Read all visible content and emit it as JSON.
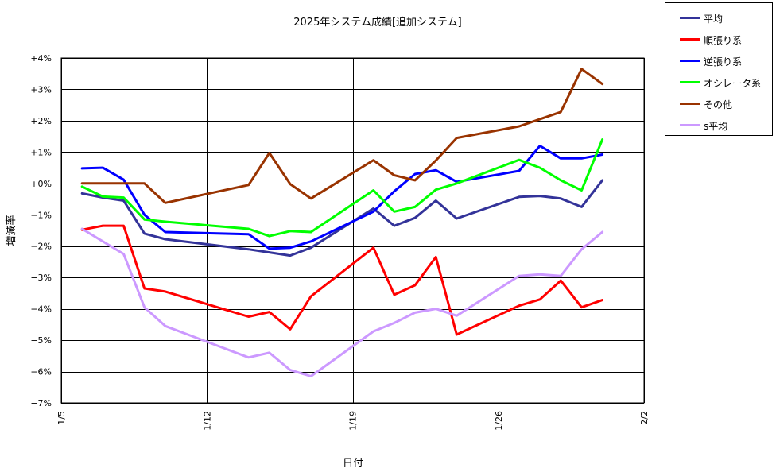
{
  "chart_data": {
    "type": "line",
    "title": "2025年システム成績[追加システム]",
    "xlabel": "日付",
    "ylabel": "増減率",
    "x_range": [
      "2025-01-05",
      "2025-02-02"
    ],
    "ylim": [
      -7,
      4
    ],
    "x_ticks": [
      {
        "date": "2025-01-05",
        "label": "1/5"
      },
      {
        "date": "2025-01-12",
        "label": "1/12"
      },
      {
        "date": "2025-01-19",
        "label": "1/19"
      },
      {
        "date": "2025-01-26",
        "label": "1/26"
      },
      {
        "date": "2025-02-02",
        "label": "2/2"
      }
    ],
    "y_ticks": [
      {
        "value": 4,
        "label": "+4%"
      },
      {
        "value": 3,
        "label": "+3%"
      },
      {
        "value": 2,
        "label": "+2%"
      },
      {
        "value": 1,
        "label": "+1%"
      },
      {
        "value": 0,
        "label": "+0%"
      },
      {
        "value": -1,
        "label": "−1%"
      },
      {
        "value": -2,
        "label": "−2%"
      },
      {
        "value": -3,
        "label": "−3%"
      },
      {
        "value": -4,
        "label": "−4%"
      },
      {
        "value": -5,
        "label": "−5%"
      },
      {
        "value": -6,
        "label": "−6%"
      },
      {
        "value": -7,
        "label": "−7%"
      }
    ],
    "grid": true,
    "legend_position": "top-right-outside",
    "x": [
      "2025-01-06",
      "2025-01-07",
      "2025-01-08",
      "2025-01-09",
      "2025-01-10",
      "2025-01-14",
      "2025-01-15",
      "2025-01-16",
      "2025-01-17",
      "2025-01-20",
      "2025-01-21",
      "2025-01-22",
      "2025-01-23",
      "2025-01-24",
      "2025-01-27",
      "2025-01-28",
      "2025-01-29",
      "2025-01-30",
      "2025-01-31"
    ],
    "series": [
      {
        "name": "平均",
        "color": "#333399",
        "values": [
          -0.32,
          -0.45,
          -0.55,
          -1.6,
          -1.78,
          -2.1,
          -2.2,
          -2.3,
          -2.05,
          -0.8,
          -1.35,
          -1.1,
          -0.55,
          -1.12,
          -0.43,
          -0.4,
          -0.48,
          -0.75,
          0.1
        ]
      },
      {
        "name": "順張り系",
        "color": "#ff0000",
        "values": [
          -1.48,
          -1.35,
          -1.35,
          -3.35,
          -3.45,
          -4.25,
          -4.1,
          -4.65,
          -3.6,
          -2.05,
          -3.55,
          -3.25,
          -2.35,
          -4.82,
          -3.9,
          -3.7,
          -3.1,
          -3.95,
          -3.72
        ]
      },
      {
        "name": "逆張り系",
        "color": "#0000ff",
        "values": [
          0.48,
          0.5,
          0.12,
          -1.0,
          -1.55,
          -1.62,
          -2.08,
          -2.05,
          -1.85,
          -0.9,
          -0.25,
          0.3,
          0.42,
          0.05,
          0.4,
          1.2,
          0.8,
          0.8,
          0.92
        ]
      },
      {
        "name": "オシレータ系",
        "color": "#00ff00",
        "values": [
          -0.1,
          -0.42,
          -0.45,
          -1.15,
          -1.22,
          -1.45,
          -1.68,
          -1.52,
          -1.55,
          -0.22,
          -0.9,
          -0.75,
          -0.2,
          0.0,
          0.75,
          0.5,
          0.1,
          -0.22,
          1.4
        ]
      },
      {
        "name": "その他",
        "color": "#993300",
        "values": [
          0.0,
          0.0,
          0.0,
          0.0,
          -0.62,
          -0.05,
          0.97,
          -0.02,
          -0.48,
          0.74,
          0.26,
          0.1,
          0.73,
          1.45,
          1.82,
          2.05,
          2.28,
          3.65,
          3.17
        ]
      },
      {
        "name": "s平均",
        "color": "#cc99ff",
        "values": [
          -1.45,
          -1.85,
          -2.25,
          -3.95,
          -4.55,
          -5.55,
          -5.4,
          -5.95,
          -6.15,
          -4.72,
          -4.45,
          -4.12,
          -4.0,
          -4.22,
          -2.95,
          -2.9,
          -2.95,
          -2.1,
          -1.55
        ]
      }
    ]
  }
}
